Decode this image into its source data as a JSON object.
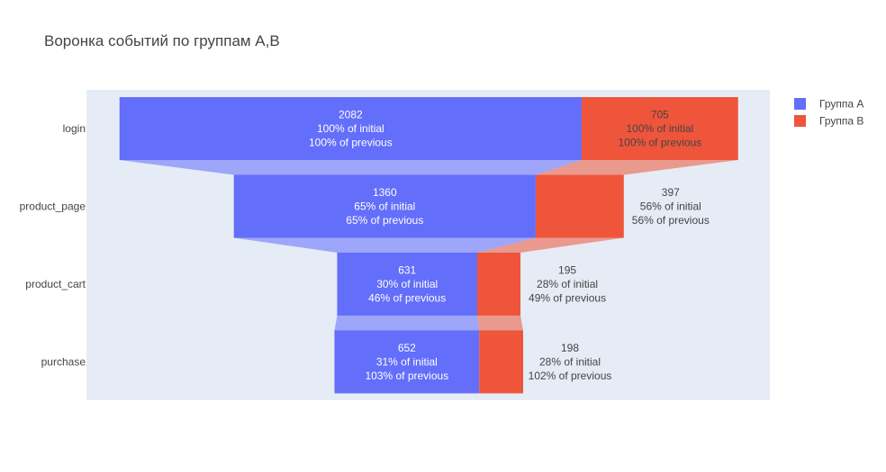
{
  "chart_data": {
    "type": "funnel",
    "title": "Воронка событий по группам A,B",
    "stages": [
      "login",
      "product_page",
      "product_cart",
      "purchase"
    ],
    "series": [
      {
        "name": "Группа A",
        "color": "#636efa",
        "values": [
          2082,
          1360,
          631,
          652
        ],
        "pct_initial": [
          "100% of initial",
          "65% of initial",
          "30% of initial",
          "31% of initial"
        ],
        "pct_previous": [
          "100% of previous",
          "65% of previous",
          "46% of previous",
          "103% of previous"
        ]
      },
      {
        "name": "Группа B",
        "color": "#ef553b",
        "values": [
          705,
          397,
          195,
          198
        ],
        "pct_initial": [
          "100% of initial",
          "56% of initial",
          "28% of initial",
          "28% of initial"
        ],
        "pct_previous": [
          "100% of previous",
          "56% of previous",
          "49% of previous",
          "102% of previous"
        ]
      }
    ],
    "plot_bg": "#e5ecf6",
    "legend_position": "top-right"
  }
}
